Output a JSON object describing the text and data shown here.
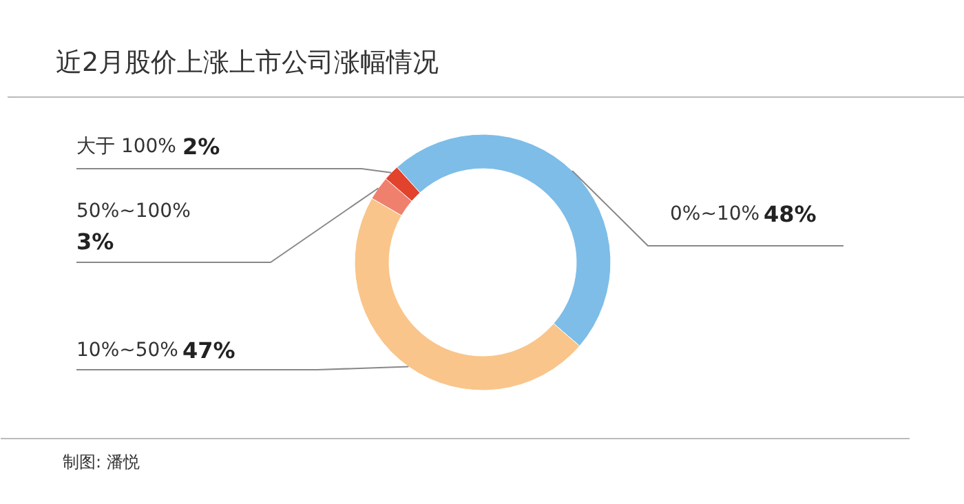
{
  "chart_data": {
    "type": "donut",
    "title": "近2月股价上涨上市公司涨幅情况",
    "categories": [
      "0%~10%",
      "10%~50%",
      "50%~100%",
      "大于 100%"
    ],
    "values": [
      48,
      47,
      3,
      2
    ],
    "value_labels": [
      "48%",
      "47%",
      "3%",
      "2%"
    ],
    "colors": [
      "#7dbde8",
      "#f9c58a",
      "#f0806e",
      "#e2432c"
    ],
    "annotations": [
      "制图: 潘悦"
    ]
  }
}
